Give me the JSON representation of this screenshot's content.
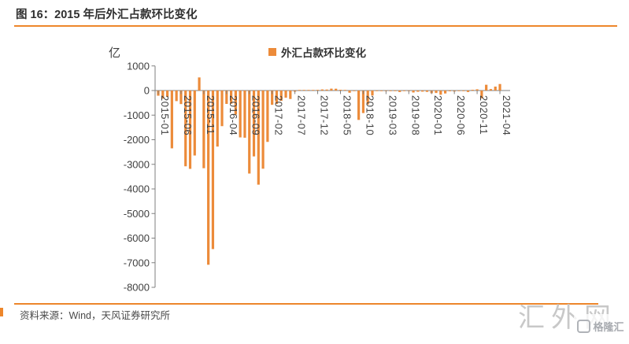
{
  "header": {
    "title": "图 16：2015 年后外汇占款环比变化"
  },
  "footer": {
    "source": "资料来源：Wind，天风证券研究所"
  },
  "watermark": {
    "site": "汇外网",
    "logo": "格隆汇"
  },
  "colors": {
    "bar": "#ec8b3a",
    "accent_orange": "#ed862b",
    "axis": "#7f7f7f",
    "tick_text": "#404040",
    "title_text": "#2f2f2f",
    "watermark_gray": "#c8c8c8"
  },
  "chart_data": {
    "type": "bar",
    "legend_label": "外汇占款环比变化",
    "legend_position": "top",
    "ylabel": "亿",
    "grid": false,
    "ylim": [
      -8000,
      1000
    ],
    "y_ticks": [
      1000,
      0,
      -1000,
      -2000,
      -3000,
      -4000,
      -5000,
      -6000,
      -7000,
      -8000
    ],
    "x_tick_labels": [
      "2015-01",
      "2015-06",
      "2015-11",
      "2016-04",
      "2016-09",
      "2017-02",
      "2017-07",
      "2017-12",
      "2018-05",
      "2018-10",
      "2019-03",
      "2019-08",
      "2020-01",
      "2020-06",
      "2020-11",
      "2021-04"
    ],
    "x": [
      "2015-01",
      "2015-02",
      "2015-03",
      "2015-04",
      "2015-05",
      "2015-06",
      "2015-07",
      "2015-08",
      "2015-09",
      "2015-10",
      "2015-11",
      "2015-12",
      "2016-01",
      "2016-02",
      "2016-03",
      "2016-04",
      "2016-05",
      "2016-06",
      "2016-07",
      "2016-08",
      "2016-09",
      "2016-10",
      "2016-11",
      "2016-12",
      "2017-01",
      "2017-02",
      "2017-03",
      "2017-04",
      "2017-05",
      "2017-06",
      "2017-07",
      "2017-08",
      "2017-09",
      "2017-10",
      "2017-11",
      "2017-12",
      "2018-01",
      "2018-02",
      "2018-03",
      "2018-04",
      "2018-05",
      "2018-06",
      "2018-07",
      "2018-08",
      "2018-09",
      "2018-10",
      "2018-11",
      "2018-12",
      "2019-01",
      "2019-02",
      "2019-03",
      "2019-04",
      "2019-05",
      "2019-06",
      "2019-07",
      "2019-08",
      "2019-09",
      "2019-10",
      "2019-11",
      "2019-12",
      "2020-01",
      "2020-02",
      "2020-03",
      "2020-04",
      "2020-05",
      "2020-06",
      "2020-07",
      "2020-08",
      "2020-09",
      "2020-10",
      "2020-11",
      "2020-12",
      "2021-01",
      "2021-02",
      "2021-03",
      "2021-04"
    ],
    "values": [
      -210,
      -330,
      -260,
      -2350,
      -430,
      -550,
      -3080,
      -3184,
      -2641,
      533,
      -3158,
      -7082,
      -6445,
      -2279,
      -1448,
      -544,
      -537,
      -977,
      -1905,
      -1918,
      -3375,
      -2678,
      -3827,
      -3178,
      -2088,
      -581,
      -547,
      -420,
      -293,
      -343,
      -46,
      9,
      17,
      21,
      24,
      28,
      45,
      40,
      77,
      74,
      31,
      7,
      -91,
      -24,
      -1194,
      -916,
      -571,
      -203,
      -12,
      -5,
      -7,
      -9,
      -10,
      -61,
      -10,
      -16,
      -80,
      -50,
      -45,
      -55,
      -110,
      -100,
      -170,
      -120,
      -30,
      -40,
      -21,
      -15,
      -60,
      30,
      50,
      -320,
      235,
      60,
      160,
      265
    ]
  }
}
